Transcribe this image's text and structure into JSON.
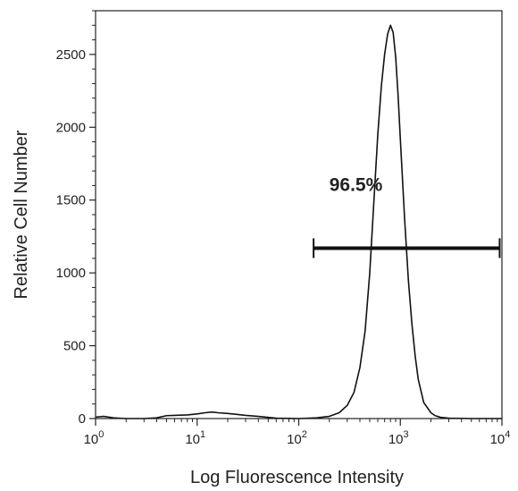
{
  "chart_data": {
    "type": "area",
    "title": "",
    "xlabel": "Log Fluorescence Intensity",
    "ylabel": "Relative Cell Number",
    "x_scale": "log",
    "xlim": [
      1,
      10000
    ],
    "ylim": [
      0,
      2800
    ],
    "x_ticks": [
      {
        "value": 1,
        "base": "10",
        "exp": "0"
      },
      {
        "value": 10,
        "base": "10",
        "exp": "1"
      },
      {
        "value": 100,
        "base": "10",
        "exp": "2"
      },
      {
        "value": 1000,
        "base": "10",
        "exp": "3"
      },
      {
        "value": 10000,
        "base": "10",
        "exp": "4"
      }
    ],
    "y_ticks": [
      {
        "value": 0,
        "label": "0"
      },
      {
        "value": 500,
        "label": "500"
      },
      {
        "value": 1000,
        "label": "1000"
      },
      {
        "value": 1500,
        "label": "1500"
      },
      {
        "value": 2000,
        "label": "2000"
      },
      {
        "value": 2500,
        "label": "2500"
      }
    ],
    "grid": false,
    "series": [
      {
        "x": [
          1,
          1.2,
          1.5,
          2,
          3,
          4,
          5,
          6,
          8,
          10,
          12,
          14,
          16,
          20,
          25,
          30,
          40,
          50,
          60,
          80,
          100,
          150,
          200,
          250,
          300,
          350,
          400,
          450,
          500,
          550,
          600,
          650,
          700,
          750,
          800,
          850,
          900,
          950,
          1000,
          1100,
          1200,
          1300,
          1400,
          1500,
          1700,
          2000,
          2200,
          2500,
          3000,
          5000,
          10000
        ],
        "y": [
          10,
          15,
          5,
          0,
          0,
          5,
          20,
          22,
          25,
          32,
          40,
          45,
          40,
          35,
          28,
          22,
          15,
          8,
          3,
          1,
          0,
          5,
          15,
          40,
          90,
          180,
          350,
          600,
          1000,
          1500,
          1950,
          2280,
          2500,
          2640,
          2700,
          2650,
          2480,
          2220,
          1920,
          1380,
          950,
          650,
          430,
          270,
          110,
          40,
          20,
          8,
          3,
          0,
          0
        ]
      }
    ],
    "annotations": [
      {
        "text": "96.5%",
        "x": 200,
        "y": 1550
      }
    ],
    "marker": {
      "x_start": 140,
      "x_end": 9500,
      "y": 1170
    }
  }
}
